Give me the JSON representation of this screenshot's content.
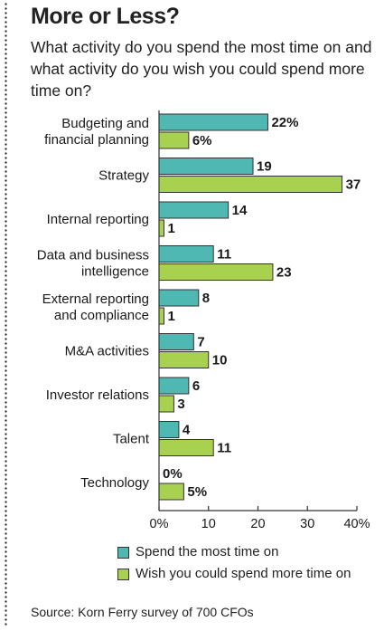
{
  "title": "More or Less?",
  "subtitle": "What activity do you spend the most time on and what activity do you wish you could spend more time on?",
  "source": "Source: Korn Ferry survey of 700 CFOs",
  "colors": {
    "spend": "#4fb8b2",
    "wish": "#a8d14f",
    "axis": "#333333"
  },
  "chart_data": {
    "type": "bar",
    "orientation": "horizontal",
    "categories": [
      [
        "Budgeting and",
        "financial planning"
      ],
      [
        "Strategy"
      ],
      [
        "Internal reporting"
      ],
      [
        "Data and business",
        "intelligence"
      ],
      [
        "External reporting",
        "and compliance"
      ],
      [
        "M&A activities"
      ],
      [
        "Investor relations"
      ],
      [
        "Talent"
      ],
      [
        "Technology"
      ]
    ],
    "series": [
      {
        "name": "Spend the most time on",
        "values": [
          22,
          19,
          14,
          11,
          8,
          7,
          6,
          4,
          0
        ],
        "labels": [
          "22%",
          "19",
          "14",
          "11",
          "8",
          "7",
          "6",
          "4",
          "0%"
        ]
      },
      {
        "name": "Wish you could spend more time on",
        "values": [
          6,
          37,
          1,
          23,
          1,
          10,
          3,
          11,
          5
        ],
        "labels": [
          "6%",
          "37",
          "1",
          "23",
          "1",
          "10",
          "3",
          "11",
          "5%"
        ]
      }
    ],
    "xlim": [
      0,
      40
    ],
    "xticks": [
      0,
      10,
      20,
      30,
      40
    ],
    "xtick_labels": [
      "0%",
      "10",
      "20",
      "30",
      "40%"
    ],
    "legend_position": "bottom",
    "grid": false
  }
}
